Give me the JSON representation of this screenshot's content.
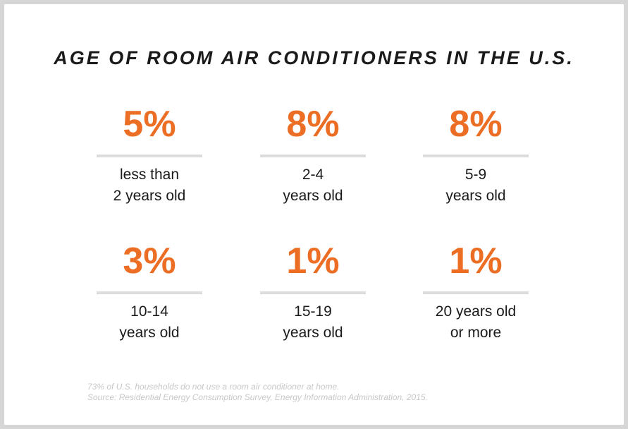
{
  "chart_data": {
    "type": "table",
    "title": "AGE OF ROOM AIR CONDITIONERS IN THE U.S.",
    "unit": "%",
    "items": [
      {
        "value": "5%",
        "percent": 5,
        "label_lines": [
          "less than",
          "2 years old"
        ]
      },
      {
        "value": "8%",
        "percent": 8,
        "label_lines": [
          "2-4",
          "years old"
        ]
      },
      {
        "value": "8%",
        "percent": 8,
        "label_lines": [
          "5-9",
          "years old"
        ]
      },
      {
        "value": "3%",
        "percent": 3,
        "label_lines": [
          "10-14",
          "years old"
        ]
      },
      {
        "value": "1%",
        "percent": 1,
        "label_lines": [
          "15-19",
          "years old"
        ]
      },
      {
        "value": "1%",
        "percent": 1,
        "label_lines": [
          "20 years old",
          "or more"
        ]
      }
    ],
    "footnote": "73% of U.S. households do not use a room air conditioner at home.",
    "source": "Source: Residential Energy Consumption Survey, Energy Information Administration, 2015."
  },
  "colors": {
    "accent": "#ec6d24",
    "text": "#1a1a1a",
    "rule": "#dcdcdc",
    "note": "#c8c8c8",
    "frame": "#d6d6d6",
    "card": "#ffffff"
  }
}
